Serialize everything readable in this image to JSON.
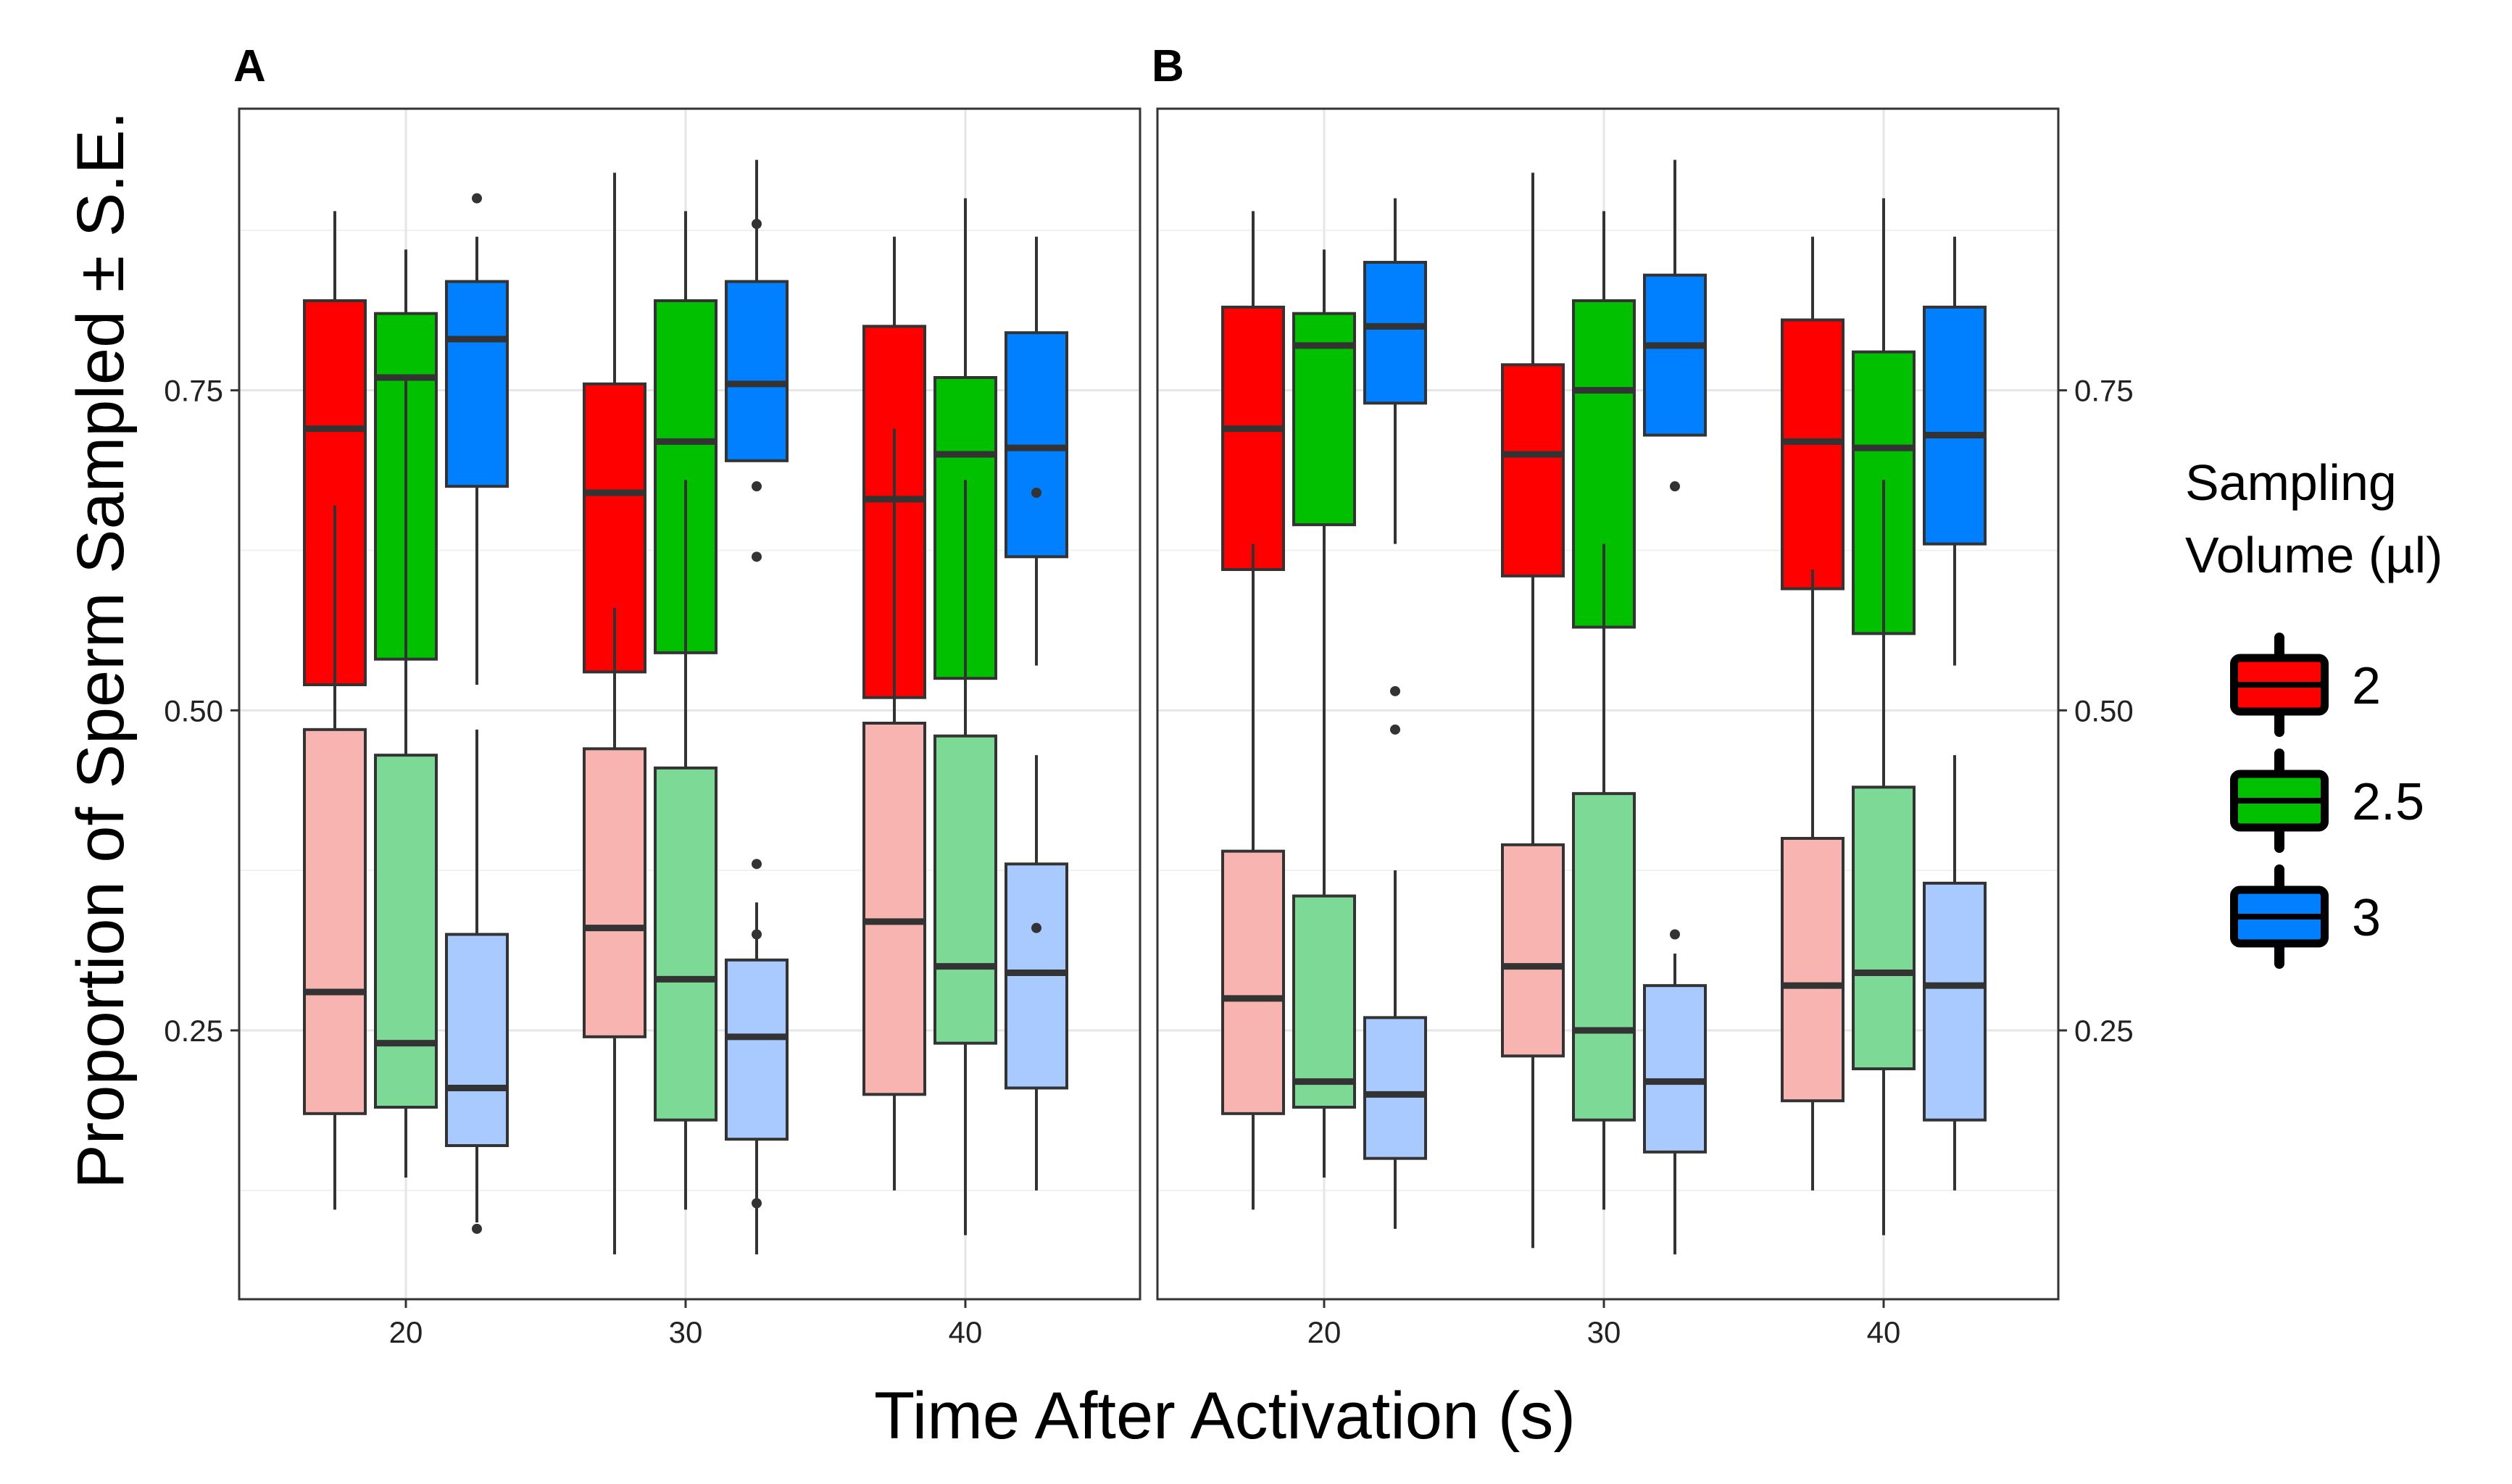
{
  "chart_data": {
    "type": "boxplot",
    "xlabel": "Time After Activation (s)",
    "ylabel": "Proportion of Sperm Sampled ± S.E.",
    "categories": [
      "20",
      "30",
      "40"
    ],
    "yticks": [
      "0.25",
      "0.50",
      "0.75"
    ],
    "ytick_values": [
      0.25,
      0.5,
      0.75
    ],
    "ylim": [
      0.04,
      0.97
    ],
    "grid": true,
    "legend": {
      "position": "right",
      "title_line1": "Sampling",
      "title_line2": "Volume (µl)",
      "entries": [
        {
          "label": "2",
          "color": "#ff0000"
        },
        {
          "label": "2.5",
          "color": "#00c000"
        },
        {
          "label": "3",
          "color": "#0080ff"
        }
      ]
    },
    "light_colors": [
      "#f8b4b0",
      "#7dd996",
      "#a9caff"
    ],
    "panels": [
      {
        "letter": "A",
        "upper": [
          {
            "cat": 0,
            "vol": 0,
            "lw": 0.34,
            "q1": 0.52,
            "med": 0.72,
            "q3": 0.82,
            "uw": 0.89,
            "out": []
          },
          {
            "cat": 0,
            "vol": 1,
            "lw": 0.25,
            "q1": 0.54,
            "med": 0.76,
            "q3": 0.81,
            "uw": 0.86,
            "out": []
          },
          {
            "cat": 0,
            "vol": 2,
            "lw": 0.52,
            "q1": 0.675,
            "med": 0.79,
            "q3": 0.835,
            "uw": 0.87,
            "out": [
              0.9
            ]
          },
          {
            "cat": 1,
            "vol": 0,
            "lw": 0.42,
            "q1": 0.53,
            "med": 0.67,
            "q3": 0.755,
            "uw": 0.92,
            "out": []
          },
          {
            "cat": 1,
            "vol": 1,
            "lw": 0.32,
            "q1": 0.545,
            "med": 0.71,
            "q3": 0.82,
            "uw": 0.89,
            "out": []
          },
          {
            "cat": 1,
            "vol": 2,
            "lw": 0.695,
            "q1": 0.695,
            "med": 0.755,
            "q3": 0.835,
            "uw": 0.93,
            "out": [
              0.88,
              0.675,
              0.62
            ]
          },
          {
            "cat": 2,
            "vol": 0,
            "lw": 0.28,
            "q1": 0.51,
            "med": 0.665,
            "q3": 0.8,
            "uw": 0.87,
            "out": []
          },
          {
            "cat": 2,
            "vol": 1,
            "lw": 0.33,
            "q1": 0.525,
            "med": 0.7,
            "q3": 0.76,
            "uw": 0.9,
            "out": []
          },
          {
            "cat": 2,
            "vol": 2,
            "lw": 0.535,
            "q1": 0.62,
            "med": 0.705,
            "q3": 0.795,
            "uw": 0.87,
            "out": [
              0.67
            ]
          }
        ],
        "lower": [
          {
            "cat": 0,
            "vol": 0,
            "lw": 0.11,
            "q1": 0.185,
            "med": 0.28,
            "q3": 0.485,
            "uw": 0.66,
            "out": []
          },
          {
            "cat": 0,
            "vol": 1,
            "lw": 0.135,
            "q1": 0.19,
            "med": 0.24,
            "q3": 0.465,
            "uw": 0.76,
            "out": []
          },
          {
            "cat": 0,
            "vol": 2,
            "lw": 0.1,
            "q1": 0.16,
            "med": 0.205,
            "q3": 0.325,
            "uw": 0.485,
            "out": [
              0.095
            ]
          },
          {
            "cat": 1,
            "vol": 0,
            "lw": 0.075,
            "q1": 0.245,
            "med": 0.33,
            "q3": 0.47,
            "uw": 0.58,
            "out": []
          },
          {
            "cat": 1,
            "vol": 1,
            "lw": 0.11,
            "q1": 0.18,
            "med": 0.29,
            "q3": 0.455,
            "uw": 0.68,
            "out": []
          },
          {
            "cat": 1,
            "vol": 2,
            "lw": 0.075,
            "q1": 0.165,
            "med": 0.245,
            "q3": 0.305,
            "uw": 0.35,
            "out": [
              0.38,
              0.325,
              0.115
            ]
          },
          {
            "cat": 2,
            "vol": 0,
            "lw": 0.125,
            "q1": 0.2,
            "med": 0.335,
            "q3": 0.49,
            "uw": 0.72,
            "out": []
          },
          {
            "cat": 2,
            "vol": 1,
            "lw": 0.09,
            "q1": 0.24,
            "med": 0.3,
            "q3": 0.48,
            "uw": 0.68,
            "out": []
          },
          {
            "cat": 2,
            "vol": 2,
            "lw": 0.125,
            "q1": 0.205,
            "med": 0.295,
            "q3": 0.38,
            "uw": 0.465,
            "out": [
              0.33
            ]
          }
        ]
      },
      {
        "letter": "B",
        "upper": [
          {
            "cat": 0,
            "vol": 0,
            "lw": 0.37,
            "q1": 0.61,
            "med": 0.72,
            "q3": 0.815,
            "uw": 0.89,
            "out": []
          },
          {
            "cat": 0,
            "vol": 1,
            "lw": 0.55,
            "q1": 0.645,
            "med": 0.785,
            "q3": 0.81,
            "uw": 0.86,
            "out": []
          },
          {
            "cat": 0,
            "vol": 2,
            "lw": 0.63,
            "q1": 0.74,
            "med": 0.8,
            "q3": 0.85,
            "uw": 0.9,
            "out": []
          },
          {
            "cat": 1,
            "vol": 0,
            "lw": 0.55,
            "q1": 0.605,
            "med": 0.7,
            "q3": 0.77,
            "uw": 0.92,
            "out": []
          },
          {
            "cat": 1,
            "vol": 1,
            "lw": 0.37,
            "q1": 0.565,
            "med": 0.75,
            "q3": 0.82,
            "uw": 0.89,
            "out": []
          },
          {
            "cat": 1,
            "vol": 2,
            "lw": 0.715,
            "q1": 0.715,
            "med": 0.785,
            "q3": 0.84,
            "uw": 0.93,
            "out": [
              0.675
            ]
          },
          {
            "cat": 2,
            "vol": 0,
            "lw": 0.39,
            "q1": 0.595,
            "med": 0.71,
            "q3": 0.805,
            "uw": 0.87,
            "out": []
          },
          {
            "cat": 2,
            "vol": 1,
            "lw": 0.44,
            "q1": 0.56,
            "med": 0.705,
            "q3": 0.78,
            "uw": 0.9,
            "out": []
          },
          {
            "cat": 2,
            "vol": 2,
            "lw": 0.535,
            "q1": 0.63,
            "med": 0.715,
            "q3": 0.815,
            "uw": 0.87,
            "out": []
          }
        ],
        "lower": [
          {
            "cat": 0,
            "vol": 0,
            "lw": 0.11,
            "q1": 0.185,
            "med": 0.275,
            "q3": 0.39,
            "uw": 0.63,
            "out": []
          },
          {
            "cat": 0,
            "vol": 1,
            "lw": 0.135,
            "q1": 0.19,
            "med": 0.21,
            "q3": 0.355,
            "uw": 0.55,
            "out": []
          },
          {
            "cat": 0,
            "vol": 2,
            "lw": 0.095,
            "q1": 0.15,
            "med": 0.2,
            "q3": 0.26,
            "uw": 0.375,
            "out": [
              0.515,
              0.485
            ]
          },
          {
            "cat": 1,
            "vol": 0,
            "lw": 0.08,
            "q1": 0.23,
            "med": 0.3,
            "q3": 0.395,
            "uw": 0.55,
            "out": []
          },
          {
            "cat": 1,
            "vol": 1,
            "lw": 0.11,
            "q1": 0.18,
            "med": 0.25,
            "q3": 0.435,
            "uw": 0.63,
            "out": []
          },
          {
            "cat": 1,
            "vol": 2,
            "lw": 0.075,
            "q1": 0.155,
            "med": 0.21,
            "q3": 0.285,
            "uw": 0.31,
            "out": [
              0.325
            ]
          },
          {
            "cat": 2,
            "vol": 0,
            "lw": 0.125,
            "q1": 0.195,
            "med": 0.285,
            "q3": 0.4,
            "uw": 0.61,
            "out": []
          },
          {
            "cat": 2,
            "vol": 1,
            "lw": 0.09,
            "q1": 0.22,
            "med": 0.295,
            "q3": 0.44,
            "uw": 0.68,
            "out": []
          },
          {
            "cat": 2,
            "vol": 2,
            "lw": 0.125,
            "q1": 0.18,
            "med": 0.285,
            "q3": 0.365,
            "uw": 0.465,
            "out": []
          }
        ]
      }
    ]
  }
}
